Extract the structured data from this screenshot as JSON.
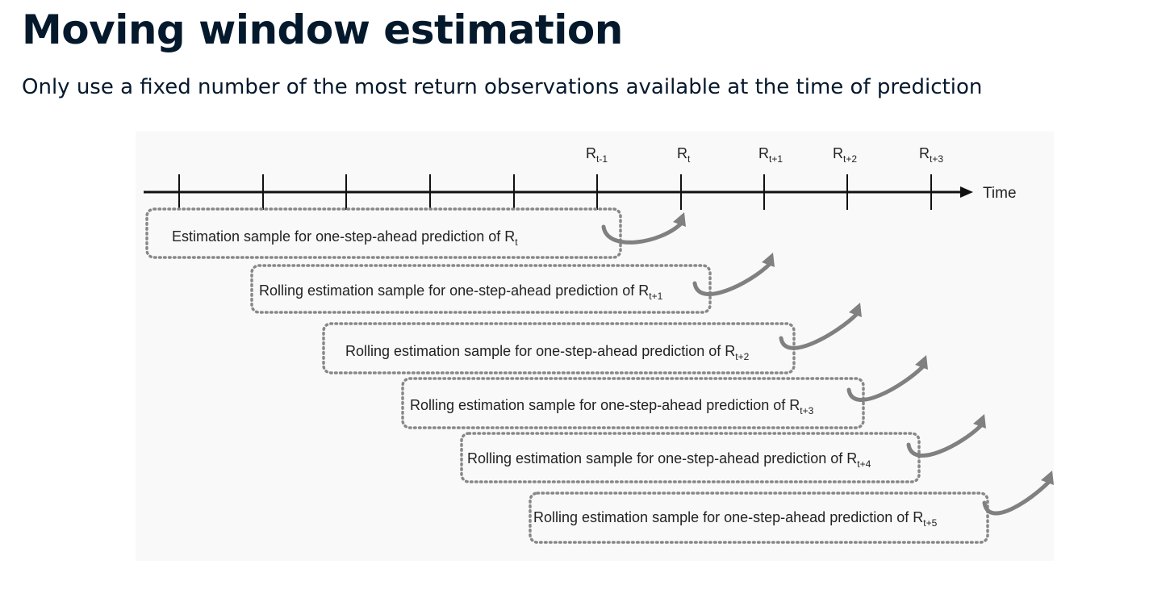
{
  "header": {
    "title": "Moving window estimation",
    "subtitle": "Only use a fixed number of the most return observations available at the time of prediction"
  },
  "diagram": {
    "axis_label": "Time",
    "time_labels": [
      {
        "base": "R",
        "sub": "t-1"
      },
      {
        "base": "R",
        "sub": "t"
      },
      {
        "base": "R",
        "sub": "t+1"
      },
      {
        "base": "R",
        "sub": "t+2"
      },
      {
        "base": "R",
        "sub": "t+3"
      }
    ],
    "windows": [
      {
        "text": "Estimation sample for one-step-ahead prediction of R",
        "sub": "t"
      },
      {
        "text": "Rolling estimation sample for one-step-ahead prediction of R",
        "sub": "t+1"
      },
      {
        "text": "Rolling estimation sample for one-step-ahead prediction of R",
        "sub": "t+2"
      },
      {
        "text": "Rolling estimation sample for one-step-ahead prediction of R",
        "sub": "t+3"
      },
      {
        "text": "Rolling estimation sample for one-step-ahead prediction of R",
        "sub": "t+4"
      },
      {
        "text": "Rolling estimation sample for one-step-ahead prediction of R",
        "sub": "t+5"
      }
    ],
    "colors": {
      "line": "#111111",
      "box_border": "#888888",
      "arrow": "#808080"
    }
  }
}
